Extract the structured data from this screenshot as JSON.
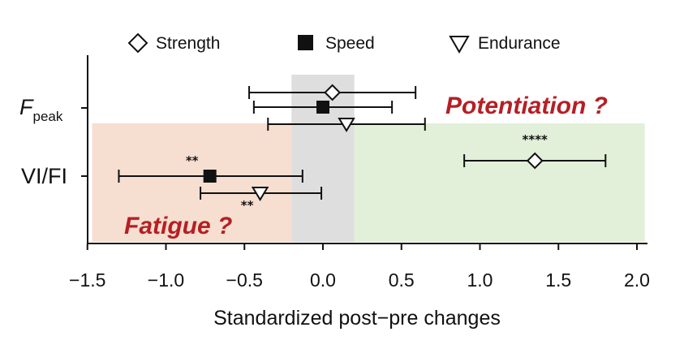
{
  "chart_data": {
    "type": "forest",
    "xlabel": "Standardized post−pre changes",
    "xlim": [
      -1.5,
      2.05
    ],
    "xticks": [
      -1.5,
      -1.0,
      -0.5,
      0.0,
      0.5,
      1.0,
      1.5,
      2.0
    ],
    "xtick_labels": [
      "−1.5",
      "−1.0",
      "−0.5",
      "0.0",
      "0.5",
      "1.0",
      "1.5",
      "2.0"
    ],
    "categories": [
      {
        "id": "fpeak",
        "label": "F",
        "subscript": "peak"
      },
      {
        "id": "vifi",
        "label": "VI/FI",
        "subscript": ""
      }
    ],
    "series": [
      {
        "name": "Strength",
        "marker": "diamond",
        "color": "#ffffff"
      },
      {
        "name": "Speed",
        "marker": "square",
        "color": "#111111"
      },
      {
        "name": "Endurance",
        "marker": "triangle-down",
        "color": "#ffffff"
      }
    ],
    "points": [
      {
        "category": "fpeak",
        "series": "Strength",
        "value": 0.06,
        "ci": [
          -0.47,
          0.59
        ],
        "sig": ""
      },
      {
        "category": "fpeak",
        "series": "Speed",
        "value": 0.0,
        "ci": [
          -0.44,
          0.44
        ],
        "sig": ""
      },
      {
        "category": "fpeak",
        "series": "Endurance",
        "value": 0.15,
        "ci": [
          -0.35,
          0.65
        ],
        "sig": ""
      },
      {
        "category": "vifi",
        "series": "Strength",
        "value": 1.35,
        "ci": [
          0.9,
          1.8
        ],
        "sig": "****"
      },
      {
        "category": "vifi",
        "series": "Speed",
        "value": -0.72,
        "ci": [
          -1.3,
          -0.13
        ],
        "sig": "**"
      },
      {
        "category": "vifi",
        "series": "Endurance",
        "value": -0.4,
        "ci": [
          -0.78,
          -0.01
        ],
        "sig": "**"
      }
    ],
    "regions": [
      {
        "name": "fatigue",
        "from": -1.47,
        "to": -0.2,
        "color": "#f6ded0"
      },
      {
        "name": "neutral",
        "from": -0.2,
        "to": 0.2,
        "color": "#dedede"
      },
      {
        "name": "potentiation",
        "from": 0.2,
        "to": 2.05,
        "color": "#e2efd9"
      }
    ],
    "annotations": {
      "fatigue": "Fatigue ?",
      "potentiation": "Potentiation ?"
    },
    "annotation_color": "#b51f24"
  }
}
